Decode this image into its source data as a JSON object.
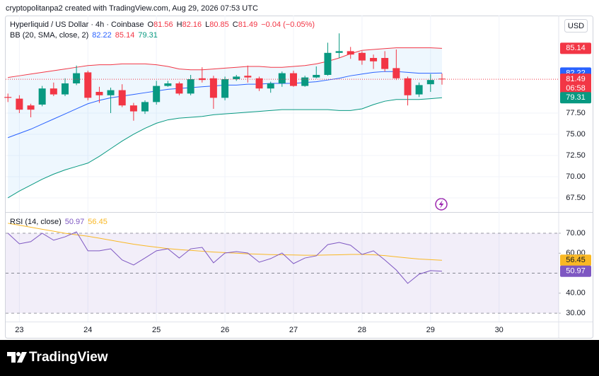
{
  "header": "cryptopolitanpa2 created with TradingView.com, Aug 29, 2026 07:53 UTC",
  "currency": "USD",
  "footer_brand": "TradingView",
  "chart_data": [
    {
      "type": "candlestick",
      "title": "Hyperliquid / US Dollar · 4h · Coinbase",
      "ohlc_labels": [
        "O",
        "H",
        "L",
        "C"
      ],
      "change": "−0.04 (−0.05%)",
      "countdown": "06:58",
      "up_color": "#089981",
      "down_color": "#f23645",
      "x": [
        22.833,
        23,
        23.167,
        23.333,
        23.5,
        23.667,
        23.833,
        24,
        24.167,
        24.333,
        24.5,
        24.667,
        24.833,
        25,
        25.167,
        25.333,
        25.5,
        25.667,
        25.833,
        26,
        26.167,
        26.333,
        26.5,
        26.667,
        26.833,
        27,
        27.167,
        27.333,
        27.5,
        27.667,
        27.833,
        28,
        28.167,
        28.333,
        28.5,
        28.667,
        28.833,
        29,
        29.167
      ],
      "open": [
        79.4,
        79.2,
        78.4,
        78.5,
        80.4,
        79.7,
        81.0,
        82.3,
        80.0,
        79.6,
        80.2,
        78.4,
        77.7,
        78.8,
        80.7,
        81.0,
        79.8,
        81.6,
        81.6,
        79.3,
        81.5,
        81.9,
        81.6,
        80.4,
        81.0,
        82.2,
        80.7,
        81.7,
        82.0,
        84.6,
        84.8,
        84.6,
        84.0,
        84.0,
        82.8,
        81.6,
        79.7,
        80.9,
        81.56
      ],
      "high": [
        79.8,
        79.6,
        78.6,
        80.7,
        81.1,
        81.6,
        83.1,
        82.5,
        80.6,
        80.5,
        80.9,
        78.7,
        79.0,
        81.3,
        81.3,
        81.2,
        82.0,
        82.9,
        81.9,
        81.8,
        82.0,
        83.1,
        81.8,
        81.2,
        82.4,
        82.5,
        81.9,
        83.0,
        85.8,
        86.9,
        85.3,
        84.8,
        84.4,
        84.8,
        85.0,
        81.8,
        81.1,
        82.1,
        82.16
      ],
      "low": [
        78.8,
        77.5,
        77.0,
        78.3,
        79.5,
        79.5,
        80.8,
        79.0,
        78.7,
        77.5,
        78.2,
        76.6,
        77.4,
        78.5,
        80.6,
        79.6,
        79.6,
        81.1,
        78.0,
        79.0,
        81.3,
        81.1,
        80.1,
        79.9,
        80.6,
        80.6,
        80.6,
        81.6,
        81.9,
        84.0,
        83.9,
        83.2,
        82.7,
        82.4,
        81.4,
        78.4,
        79.4,
        80.0,
        80.85
      ],
      "close": [
        79.3,
        77.9,
        77.9,
        80.4,
        79.7,
        81.0,
        82.2,
        79.3,
        79.6,
        80.2,
        78.4,
        77.7,
        78.8,
        80.7,
        81.0,
        79.8,
        81.5,
        81.4,
        79.3,
        81.5,
        81.8,
        81.7,
        80.4,
        81.0,
        82.2,
        80.7,
        81.7,
        82.0,
        84.6,
        84.8,
        84.4,
        83.7,
        83.6,
        82.7,
        81.6,
        79.6,
        80.8,
        81.4,
        81.49
      ],
      "indicator": "BB (20, SMA, close, 2)",
      "series": [
        {
          "color": "#2962ff",
          "values": [
            74.6,
            75.1,
            75.6,
            76.2,
            76.8,
            77.4,
            78.0,
            78.6,
            79.0,
            79.3,
            79.5,
            79.7,
            79.9,
            80.1,
            80.3,
            80.4,
            80.5,
            80.6,
            80.7,
            80.8,
            80.8,
            80.9,
            80.9,
            81.0,
            81.0,
            81.0,
            81.1,
            81.2,
            81.4,
            81.6,
            81.9,
            82.1,
            82.3,
            82.4,
            82.4,
            82.3,
            82.2,
            82.2,
            82.22
          ]
        },
        {
          "color": "#f23645",
          "values": [
            81.7,
            81.9,
            82.1,
            82.3,
            82.5,
            82.7,
            82.9,
            83.1,
            83.2,
            83.2,
            83.3,
            83.3,
            83.3,
            83.2,
            83.0,
            82.7,
            82.6,
            82.6,
            82.7,
            82.8,
            82.9,
            83.0,
            83.0,
            82.9,
            82.9,
            83.0,
            83.1,
            83.3,
            83.6,
            84.0,
            84.5,
            84.9,
            85.0,
            85.1,
            85.2,
            85.2,
            85.2,
            85.2,
            85.14
          ]
        },
        {
          "color": "#089981",
          "values": [
            67.5,
            68.3,
            69.0,
            69.7,
            70.3,
            70.8,
            71.2,
            71.6,
            72.4,
            73.3,
            74.2,
            75.0,
            75.7,
            76.3,
            76.7,
            76.9,
            77.0,
            77.1,
            77.3,
            77.4,
            77.5,
            77.6,
            77.7,
            77.8,
            77.9,
            77.9,
            77.9,
            77.9,
            77.9,
            77.8,
            77.8,
            78.0,
            78.5,
            78.9,
            79.1,
            79.1,
            79.1,
            79.2,
            79.31
          ]
        }
      ],
      "ylim": [
        65.83,
        89.0
      ],
      "yticks": [
        {
          "value": 67.5,
          "label": "67.50"
        },
        {
          "value": 70,
          "label": "70.00"
        },
        {
          "value": 72.5,
          "label": "72.50"
        },
        {
          "value": 75,
          "label": "75.00"
        },
        {
          "value": 77.5,
          "label": "77.50"
        }
      ],
      "xlim": [
        22.8,
        30.87
      ],
      "xticks": [
        23,
        24,
        25,
        26,
        27,
        28,
        29,
        30
      ],
      "grid": true
    },
    {
      "type": "line",
      "title": "RSI (14, close)",
      "series": [
        {
          "color": "#7e57c2",
          "values": [
            70.0,
            64.7,
            65.8,
            70.0,
            66.5,
            68.2,
            70.7,
            61.2,
            61.2,
            62.2,
            56.6,
            54.1,
            57.6,
            61.2,
            62.2,
            57.6,
            62.2,
            62.9,
            55.2,
            60.1,
            60.8,
            60.1,
            55.5,
            57.3,
            60.1,
            54.8,
            57.6,
            58.7,
            64.3,
            65.4,
            64.0,
            59.4,
            61.2,
            56.6,
            51.6,
            44.9,
            49.5,
            51.3,
            50.97
          ]
        },
        {
          "color": "#f9b825",
          "values": [
            75.0,
            74.0,
            73.0,
            72.0,
            71.0,
            70.0,
            69.2,
            68.5,
            67.5,
            66.5,
            65.5,
            64.5,
            63.7,
            63.0,
            62.3,
            61.8,
            61.4,
            61.0,
            60.6,
            60.3,
            60.0,
            59.7,
            59.5,
            59.3,
            59.2,
            59.1,
            59.0,
            59.0,
            59.1,
            59.2,
            59.4,
            59.4,
            59.2,
            58.8,
            58.2,
            57.6,
            57.1,
            56.8,
            56.45
          ]
        }
      ],
      "ylim": [
        25.8,
        80.6
      ],
      "yticks": [
        {
          "value": 30,
          "label": "30.00"
        },
        {
          "value": 40,
          "label": "40.00"
        },
        {
          "value": 60,
          "label": "60.00"
        },
        {
          "value": 70,
          "label": "70.00"
        }
      ],
      "band": [
        30,
        70
      ],
      "levels": [
        30,
        50,
        70
      ]
    }
  ]
}
